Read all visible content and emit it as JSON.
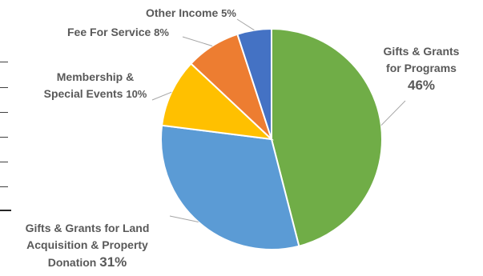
{
  "chart_data": {
    "type": "pie",
    "title": "",
    "slices": [
      {
        "label_lines": [
          "Gifts & Grants",
          "for Programs"
        ],
        "value": 46,
        "value_label": "46%",
        "color": "#70ad47"
      },
      {
        "label_lines": [
          "Gifts & Grants for Land",
          "Acquisition & Property",
          "Donation"
        ],
        "value": 31,
        "value_label": "31%",
        "color": "#5b9bd5"
      },
      {
        "label_lines": [
          "Membership &",
          "Special Events"
        ],
        "value": 10,
        "value_label": "10%",
        "color": "#ffc000"
      },
      {
        "label_lines": [
          "Fee For Service"
        ],
        "value": 8,
        "value_label": "8%",
        "color": "#ed7d31"
      },
      {
        "label_lines": [
          "Other Income"
        ],
        "value": 5,
        "value_label": "5%",
        "color": "#4472c4"
      }
    ],
    "start_angle": "12 o'clock",
    "direction": "clockwise",
    "legend": "none",
    "label_style": "outside with leader lines"
  }
}
